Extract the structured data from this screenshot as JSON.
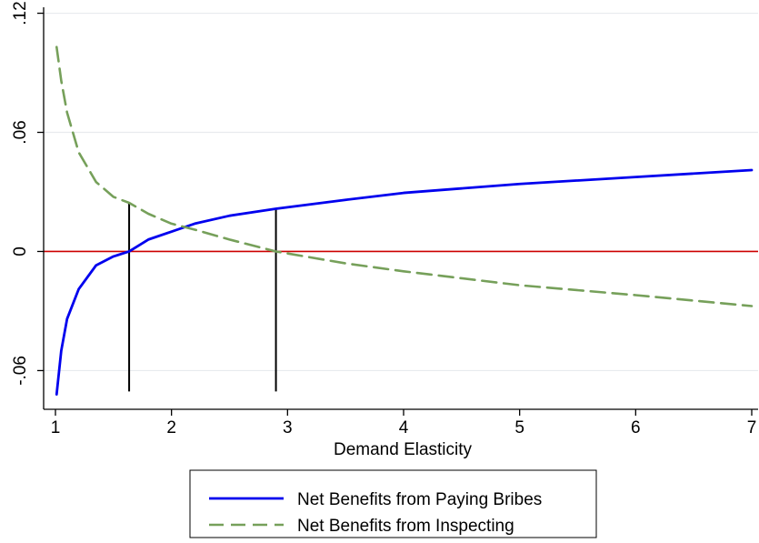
{
  "chart_data": {
    "type": "line",
    "title": "",
    "xlabel": "Demand Elasticity",
    "ylabel": "",
    "xlim": [
      1,
      7
    ],
    "ylim": [
      -0.0795,
      0.123
    ],
    "x_ticks": [
      {
        "value": 1,
        "label": "1"
      },
      {
        "value": 2,
        "label": "2"
      },
      {
        "value": 3,
        "label": "3"
      },
      {
        "value": 4,
        "label": "4"
      },
      {
        "value": 5,
        "label": "5"
      },
      {
        "value": 6,
        "label": "6"
      },
      {
        "value": 7,
        "label": "7"
      }
    ],
    "y_ticks": [
      {
        "value": -0.06,
        "label": "-.06"
      },
      {
        "value": 0,
        "label": "0"
      },
      {
        "value": 0.06,
        "label": ".06"
      },
      {
        "value": 0.12,
        "label": ".12"
      }
    ],
    "grid": "horizontal",
    "legend_position": "bottom",
    "series": [
      {
        "name": "Net Benefits from Paying Bribes",
        "color": "#0000ee",
        "style": "solid",
        "x": [
          1.01,
          1.05,
          1.1,
          1.2,
          1.35,
          1.5,
          1.635,
          1.8,
          2.0,
          2.2,
          2.5,
          2.9,
          3.5,
          4.0,
          5.0,
          6.0,
          7.0
        ],
        "y": [
          -0.072,
          -0.05,
          -0.034,
          -0.019,
          -0.007,
          -0.0025,
          0.0,
          0.006,
          0.01,
          0.014,
          0.018,
          0.0215,
          0.026,
          0.0295,
          0.034,
          0.0375,
          0.041
        ]
      },
      {
        "name": "Net Benefits from Inspecting",
        "color": "#76a05a",
        "style": "dashed",
        "x": [
          1.01,
          1.05,
          1.1,
          1.2,
          1.35,
          1.5,
          1.635,
          1.8,
          2.0,
          2.2,
          2.5,
          2.9,
          3.5,
          4.0,
          5.0,
          6.0,
          7.0
        ],
        "y": [
          0.103,
          0.086,
          0.07,
          0.05,
          0.035,
          0.0275,
          0.0245,
          0.019,
          0.014,
          0.011,
          0.006,
          0.0,
          -0.006,
          -0.01,
          -0.017,
          -0.022,
          -0.0275
        ]
      }
    ],
    "reference_lines": {
      "horizontal_zero_color": "#cc0000",
      "vertical_lines": [
        {
          "x": 1.635,
          "from": -0.0705,
          "to": 0.0245
        },
        {
          "x": 2.9,
          "from": -0.0705,
          "to": 0.0215
        }
      ]
    }
  }
}
